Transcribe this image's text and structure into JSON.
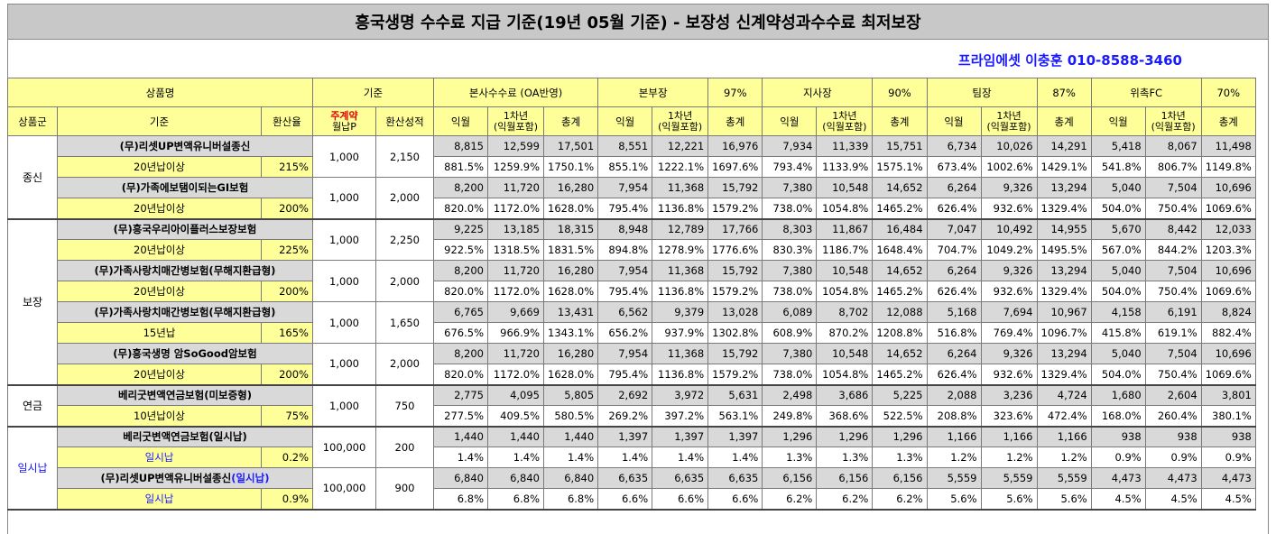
{
  "title": "흥국생명 수수료 지급 기준(19년 05월 기준) - 보장성 신계약성과수수료 최저보장",
  "contact": "프라임에셋 이충훈 010-8588-3460",
  "header1": {
    "product": "상품명",
    "basis": "기준",
    "hq": "본사수수료 (OA반영)",
    "levels": [
      {
        "name": "본부장",
        "rate": "97%"
      },
      {
        "name": "지사장",
        "rate": "90%"
      },
      {
        "name": "팀장",
        "rate": "87%"
      },
      {
        "name": "위촉FC",
        "rate": "70%"
      }
    ]
  },
  "header2": {
    "group": "상품군",
    "basis": "기준",
    "conv": "환산율",
    "main_line1": "주계약",
    "main_line2": "월납P",
    "perf": "환산성적",
    "c1": "익월",
    "c2_line1": "1차년",
    "c2_line2": "(익월포함)",
    "c3": "총계"
  },
  "groups": [
    {
      "name": "종신",
      "blue": false,
      "rowspan": 4
    },
    {
      "name": "보장",
      "blue": false,
      "rowspan": 8
    },
    {
      "name": "연금",
      "blue": false,
      "rowspan": 2
    },
    {
      "name": "일시납",
      "blue": true,
      "rowspan": 4
    }
  ],
  "products": [
    {
      "group": 0,
      "name": "(무)리셋UP변액유니버설종신",
      "name_suffix": "",
      "cond": "20년납이상",
      "cond_blue": false,
      "rate": "215%",
      "premium": "1,000",
      "perf": "2,150",
      "nums": [
        "8,815",
        "12,599",
        "17,501",
        "8,551",
        "12,221",
        "16,976",
        "7,934",
        "11,339",
        "15,751",
        "6,734",
        "10,026",
        "14,291",
        "5,418",
        "8,067",
        "11,498"
      ],
      "pcts": [
        "881.5%",
        "1259.9%",
        "1750.1%",
        "855.1%",
        "1222.1%",
        "1697.6%",
        "793.4%",
        "1133.9%",
        "1575.1%",
        "673.4%",
        "1002.6%",
        "1429.1%",
        "541.8%",
        "806.7%",
        "1149.8%"
      ]
    },
    {
      "group": 0,
      "name": "(무)가족에보탬이되는GI보험",
      "name_suffix": "",
      "cond": "20년납이상",
      "cond_blue": false,
      "rate": "200%",
      "premium": "1,000",
      "perf": "2,000",
      "nums": [
        "8,200",
        "11,720",
        "16,280",
        "7,954",
        "11,368",
        "15,792",
        "7,380",
        "10,548",
        "14,652",
        "6,264",
        "9,326",
        "13,294",
        "5,040",
        "7,504",
        "10,696"
      ],
      "pcts": [
        "820.0%",
        "1172.0%",
        "1628.0%",
        "795.4%",
        "1136.8%",
        "1579.2%",
        "738.0%",
        "1054.8%",
        "1465.2%",
        "626.4%",
        "932.6%",
        "1329.4%",
        "504.0%",
        "750.4%",
        "1069.6%"
      ]
    },
    {
      "group": 1,
      "name": "(무)흥국우리아이플러스보장보험",
      "name_suffix": "",
      "cond": "20년납이상",
      "cond_blue": false,
      "rate": "225%",
      "premium": "1,000",
      "perf": "2,250",
      "nums": [
        "9,225",
        "13,185",
        "18,315",
        "8,948",
        "12,789",
        "17,766",
        "8,303",
        "11,867",
        "16,484",
        "7,047",
        "10,492",
        "14,955",
        "5,670",
        "8,442",
        "12,033"
      ],
      "pcts": [
        "922.5%",
        "1318.5%",
        "1831.5%",
        "894.8%",
        "1278.9%",
        "1776.6%",
        "830.3%",
        "1186.7%",
        "1648.4%",
        "704.7%",
        "1049.2%",
        "1495.5%",
        "567.0%",
        "844.2%",
        "1203.3%"
      ]
    },
    {
      "group": 1,
      "name": "(무)가족사랑치매간병보험(무해지환급형)",
      "name_suffix": "",
      "cond": "20년납이상",
      "cond_blue": false,
      "rate": "200%",
      "premium": "1,000",
      "perf": "2,000",
      "nums": [
        "8,200",
        "11,720",
        "16,280",
        "7,954",
        "11,368",
        "15,792",
        "7,380",
        "10,548",
        "14,652",
        "6,264",
        "9,326",
        "13,294",
        "5,040",
        "7,504",
        "10,696"
      ],
      "pcts": [
        "820.0%",
        "1172.0%",
        "1628.0%",
        "795.4%",
        "1136.8%",
        "1579.2%",
        "738.0%",
        "1054.8%",
        "1465.2%",
        "626.4%",
        "932.6%",
        "1329.4%",
        "504.0%",
        "750.4%",
        "1069.6%"
      ]
    },
    {
      "group": 1,
      "name": "(무)가족사랑치매간병보험(무해지환급형)",
      "name_suffix": "",
      "cond": "15년납",
      "cond_blue": false,
      "rate": "165%",
      "premium": "1,000",
      "perf": "1,650",
      "nums": [
        "6,765",
        "9,669",
        "13,431",
        "6,562",
        "9,379",
        "13,028",
        "6,089",
        "8,702",
        "12,088",
        "5,168",
        "7,694",
        "10,967",
        "4,158",
        "6,191",
        "8,824"
      ],
      "pcts": [
        "676.5%",
        "966.9%",
        "1343.1%",
        "656.2%",
        "937.9%",
        "1302.8%",
        "608.9%",
        "870.2%",
        "1208.8%",
        "516.8%",
        "769.4%",
        "1096.7%",
        "415.8%",
        "619.1%",
        "882.4%"
      ]
    },
    {
      "group": 1,
      "name": "(무)흥국생명 암SoGood암보험",
      "name_suffix": "",
      "cond": "20년납이상",
      "cond_blue": false,
      "rate": "200%",
      "premium": "1,000",
      "perf": "2,000",
      "nums": [
        "8,200",
        "11,720",
        "16,280",
        "7,954",
        "11,368",
        "15,792",
        "7,380",
        "10,548",
        "14,652",
        "6,264",
        "9,326",
        "13,294",
        "5,040",
        "7,504",
        "10,696"
      ],
      "pcts": [
        "820.0%",
        "1172.0%",
        "1628.0%",
        "795.4%",
        "1136.8%",
        "1579.2%",
        "738.0%",
        "1054.8%",
        "1465.2%",
        "626.4%",
        "932.6%",
        "1329.4%",
        "504.0%",
        "750.4%",
        "1069.6%"
      ]
    },
    {
      "group": 2,
      "name": "베리굿변액연금보험(미보증형)",
      "name_suffix": "",
      "cond": "10년납이상",
      "cond_blue": false,
      "rate": "75%",
      "premium": "1,000",
      "perf": "750",
      "nums": [
        "2,775",
        "4,095",
        "5,805",
        "2,692",
        "3,972",
        "5,631",
        "2,498",
        "3,686",
        "5,225",
        "2,088",
        "3,236",
        "4,724",
        "1,680",
        "2,604",
        "3,801"
      ],
      "pcts": [
        "277.5%",
        "409.5%",
        "580.5%",
        "269.2%",
        "397.2%",
        "563.1%",
        "249.8%",
        "368.6%",
        "522.5%",
        "208.8%",
        "323.6%",
        "472.4%",
        "168.0%",
        "260.4%",
        "380.1%"
      ]
    },
    {
      "group": 3,
      "name": "베리굿변액연금보험(일시납)",
      "name_suffix": "",
      "cond": "일시납",
      "cond_blue": true,
      "rate": "0.2%",
      "premium": "100,000",
      "perf": "200",
      "nums": [
        "1,440",
        "1,440",
        "1,440",
        "1,397",
        "1,397",
        "1,397",
        "1,296",
        "1,296",
        "1,296",
        "1,166",
        "1,166",
        "1,166",
        "938",
        "938",
        "938"
      ],
      "pcts": [
        "1.4%",
        "1.4%",
        "1.4%",
        "1.4%",
        "1.4%",
        "1.4%",
        "1.3%",
        "1.3%",
        "1.3%",
        "1.2%",
        "1.2%",
        "1.2%",
        "0.9%",
        "0.9%",
        "0.9%"
      ]
    },
    {
      "group": 3,
      "name": "(무)리셋UP변액유니버설종신",
      "name_suffix": "(일시납)",
      "cond": "일시납",
      "cond_blue": true,
      "rate": "0.9%",
      "premium": "100,000",
      "perf": "900",
      "nums": [
        "6,840",
        "6,840",
        "6,840",
        "6,635",
        "6,635",
        "6,635",
        "6,156",
        "6,156",
        "6,156",
        "5,559",
        "5,559",
        "5,559",
        "4,473",
        "4,473",
        "4,473"
      ],
      "pcts": [
        "6.8%",
        "6.8%",
        "6.8%",
        "6.6%",
        "6.6%",
        "6.6%",
        "6.2%",
        "6.2%",
        "6.2%",
        "5.6%",
        "5.6%",
        "5.6%",
        "4.5%",
        "4.5%",
        "4.5%"
      ]
    }
  ]
}
